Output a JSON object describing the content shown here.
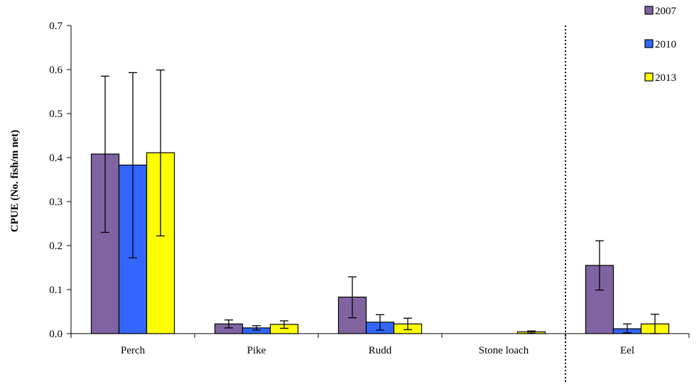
{
  "chart_data": {
    "type": "bar",
    "title": "",
    "xlabel": "",
    "ylabel": "CPUE (No. fish/m net)",
    "ylim": [
      0,
      0.7
    ],
    "yticks": [
      "0.0",
      "0.1",
      "0.2",
      "0.3",
      "0.4",
      "0.5",
      "0.6",
      "0.7"
    ],
    "grid": false,
    "legend_position": "top-right",
    "categories": [
      "Perch",
      "Pike",
      "Rudd",
      "Stone loach",
      "Eel"
    ],
    "separator_before_category": "Eel",
    "series": [
      {
        "name": "2007",
        "color": "#8064A2",
        "values": [
          0.408,
          0.022,
          0.083,
          0.0,
          0.155
        ],
        "error_low": [
          0.23,
          0.013,
          0.036,
          0.0,
          0.099
        ],
        "error_high": [
          0.585,
          0.031,
          0.129,
          0.0,
          0.211
        ]
      },
      {
        "name": "2010",
        "color": "#3366FF",
        "values": [
          0.383,
          0.013,
          0.026,
          0.0,
          0.011
        ],
        "error_low": [
          0.172,
          0.008,
          0.008,
          0.0,
          0.002
        ],
        "error_high": [
          0.593,
          0.018,
          0.043,
          0.0,
          0.022
        ]
      },
      {
        "name": "2013",
        "color": "#FFFF00",
        "values": [
          0.411,
          0.021,
          0.022,
          0.004,
          0.022
        ],
        "error_low": [
          0.222,
          0.012,
          0.009,
          0.001,
          0.0
        ],
        "error_high": [
          0.599,
          0.029,
          0.035,
          0.006,
          0.044
        ]
      }
    ]
  }
}
